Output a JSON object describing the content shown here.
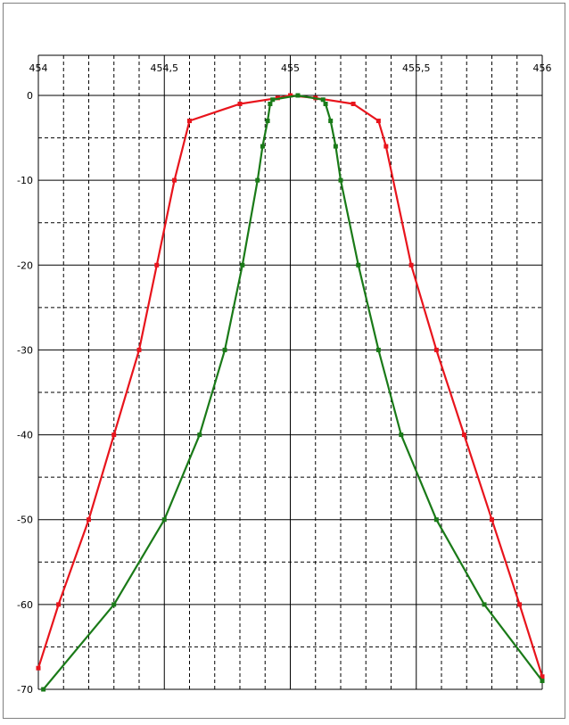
{
  "chart_data": {
    "type": "line",
    "title": "",
    "xlabel": "",
    "ylabel": "",
    "xlim": [
      454,
      456
    ],
    "ylim": [
      -70,
      0
    ],
    "x_ticks": [
      {
        "value": 454,
        "label": "454"
      },
      {
        "value": 454.5,
        "label": "454,5"
      },
      {
        "value": 455,
        "label": "455"
      },
      {
        "value": 455.5,
        "label": "455,5"
      },
      {
        "value": 456,
        "label": "456"
      }
    ],
    "y_ticks": [
      {
        "value": 0,
        "label": "0"
      },
      {
        "value": -10,
        "label": "-10"
      },
      {
        "value": -20,
        "label": "-20"
      },
      {
        "value": -30,
        "label": "-30"
      },
      {
        "value": -40,
        "label": "-40"
      },
      {
        "value": -50,
        "label": "-50"
      },
      {
        "value": -60,
        "label": "-60"
      },
      {
        "value": -70,
        "label": "-70"
      }
    ],
    "grid": {
      "x_major_step": 0.5,
      "x_minor_step": 0.1,
      "y_major_step": 10,
      "y_minor_step": 5
    },
    "legend": "none",
    "series": [
      {
        "color": "#e8141c",
        "points": [
          [
            454.0,
            -67.5
          ],
          [
            454.08,
            -60.0
          ],
          [
            454.2,
            -50.0
          ],
          [
            454.3,
            -40.0
          ],
          [
            454.4,
            -30.0
          ],
          [
            454.47,
            -20.0
          ],
          [
            454.54,
            -10.0
          ],
          [
            454.6,
            -3.0
          ],
          [
            454.8,
            -1.0
          ],
          [
            454.95,
            -0.3
          ],
          [
            455.0,
            0.0
          ],
          [
            455.1,
            -0.3
          ],
          [
            455.25,
            -1.0
          ],
          [
            455.35,
            -3.0
          ],
          [
            455.38,
            -6.0
          ],
          [
            455.48,
            -20.0
          ],
          [
            455.58,
            -30.0
          ],
          [
            455.69,
            -40.0
          ],
          [
            455.8,
            -50.0
          ],
          [
            455.91,
            -60.0
          ],
          [
            456.0,
            -68.5
          ]
        ]
      },
      {
        "color": "#1a7a18",
        "points": [
          [
            454.02,
            -70.0
          ],
          [
            454.3,
            -60.0
          ],
          [
            454.5,
            -50.0
          ],
          [
            454.64,
            -40.0
          ],
          [
            454.74,
            -30.0
          ],
          [
            454.81,
            -20.0
          ],
          [
            454.87,
            -10.0
          ],
          [
            454.89,
            -6.0
          ],
          [
            454.91,
            -3.0
          ],
          [
            454.92,
            -1.0
          ],
          [
            454.93,
            -0.5
          ],
          [
            455.03,
            0.0
          ],
          [
            455.13,
            -0.5
          ],
          [
            455.14,
            -1.0
          ],
          [
            455.16,
            -3.0
          ],
          [
            455.18,
            -6.0
          ],
          [
            455.2,
            -10.0
          ],
          [
            455.27,
            -20.0
          ],
          [
            455.35,
            -30.0
          ],
          [
            455.44,
            -40.0
          ],
          [
            455.58,
            -50.0
          ],
          [
            455.77,
            -60.0
          ],
          [
            456.0,
            -69.0
          ]
        ]
      }
    ]
  }
}
